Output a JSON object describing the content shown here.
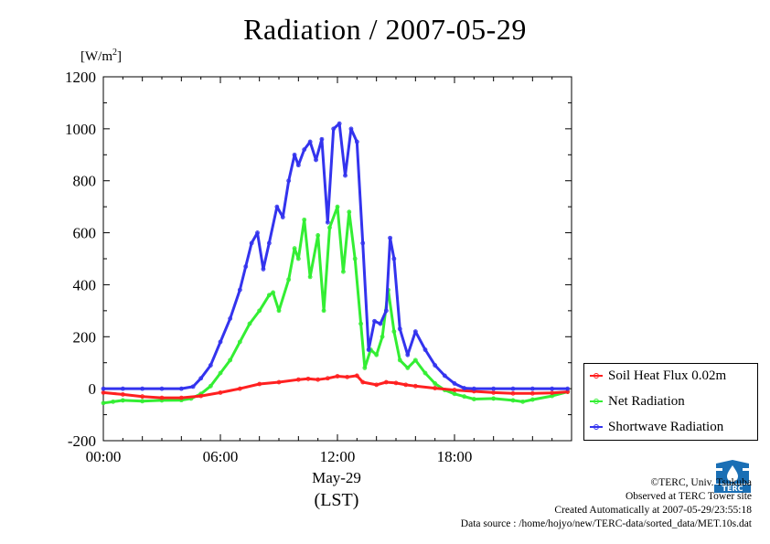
{
  "chart_data": {
    "type": "line",
    "title": "Radiation / 2007-05-29",
    "ylabel_unit": "[W/m2]",
    "xlabel": "May-29",
    "xlabel_sub": "(LST)",
    "ylim": [
      -200,
      1200
    ],
    "xlim_hours": [
      0,
      24
    ],
    "yticks": [
      "-200",
      "0",
      "200",
      "400",
      "600",
      "800",
      "1000",
      "1200"
    ],
    "xticks": [
      "00:00",
      "06:00",
      "12:00",
      "18:00"
    ],
    "legend_position": "bottom-right",
    "series": [
      {
        "name": "Soil Heat Flux 0.02m",
        "color": "#ff2020",
        "points": [
          [
            0,
            -15
          ],
          [
            1,
            -22
          ],
          [
            2,
            -30
          ],
          [
            3,
            -35
          ],
          [
            4,
            -35
          ],
          [
            5,
            -28
          ],
          [
            6,
            -15
          ],
          [
            7,
            0
          ],
          [
            8,
            18
          ],
          [
            9,
            25
          ],
          [
            10,
            35
          ],
          [
            10.5,
            38
          ],
          [
            11,
            35
          ],
          [
            11.5,
            40
          ],
          [
            12,
            48
          ],
          [
            12.5,
            45
          ],
          [
            13,
            50
          ],
          [
            13.3,
            25
          ],
          [
            14,
            15
          ],
          [
            14.5,
            25
          ],
          [
            15,
            22
          ],
          [
            15.5,
            15
          ],
          [
            16,
            10
          ],
          [
            17,
            2
          ],
          [
            18,
            -5
          ],
          [
            19,
            -10
          ],
          [
            20,
            -15
          ],
          [
            21,
            -18
          ],
          [
            22,
            -18
          ],
          [
            23,
            -16
          ],
          [
            23.8,
            -12
          ]
        ]
      },
      {
        "name": "Net Radiation",
        "color": "#33ee33",
        "points": [
          [
            0,
            -55
          ],
          [
            0.5,
            -50
          ],
          [
            1,
            -45
          ],
          [
            2,
            -48
          ],
          [
            3,
            -45
          ],
          [
            4,
            -44
          ],
          [
            4.5,
            -38
          ],
          [
            5,
            -20
          ],
          [
            5.5,
            10
          ],
          [
            6,
            60
          ],
          [
            6.5,
            110
          ],
          [
            7,
            180
          ],
          [
            7.5,
            250
          ],
          [
            8,
            300
          ],
          [
            8.5,
            360
          ],
          [
            8.7,
            370
          ],
          [
            9,
            300
          ],
          [
            9.5,
            420
          ],
          [
            9.8,
            540
          ],
          [
            10,
            500
          ],
          [
            10.3,
            650
          ],
          [
            10.6,
            430
          ],
          [
            11,
            590
          ],
          [
            11.3,
            300
          ],
          [
            11.6,
            620
          ],
          [
            12,
            700
          ],
          [
            12.3,
            450
          ],
          [
            12.6,
            680
          ],
          [
            12.9,
            500
          ],
          [
            13.2,
            250
          ],
          [
            13.4,
            80
          ],
          [
            13.7,
            150
          ],
          [
            14,
            130
          ],
          [
            14.3,
            200
          ],
          [
            14.6,
            380
          ],
          [
            14.9,
            220
          ],
          [
            15.2,
            110
          ],
          [
            15.6,
            80
          ],
          [
            16,
            110
          ],
          [
            16.5,
            60
          ],
          [
            17,
            20
          ],
          [
            17.5,
            -5
          ],
          [
            18,
            -20
          ],
          [
            18.5,
            -30
          ],
          [
            19,
            -40
          ],
          [
            20,
            -38
          ],
          [
            21,
            -45
          ],
          [
            21.5,
            -50
          ],
          [
            22,
            -42
          ],
          [
            23,
            -28
          ],
          [
            23.8,
            -12
          ]
        ]
      },
      {
        "name": "Shortwave Radiation",
        "color": "#3333ee",
        "points": [
          [
            0,
            0
          ],
          [
            1,
            0
          ],
          [
            2,
            0
          ],
          [
            3,
            0
          ],
          [
            4,
            0
          ],
          [
            4.6,
            8
          ],
          [
            5,
            40
          ],
          [
            5.5,
            90
          ],
          [
            6,
            180
          ],
          [
            6.5,
            270
          ],
          [
            7,
            380
          ],
          [
            7.3,
            470
          ],
          [
            7.6,
            560
          ],
          [
            7.9,
            600
          ],
          [
            8.2,
            460
          ],
          [
            8.5,
            560
          ],
          [
            8.9,
            700
          ],
          [
            9.2,
            660
          ],
          [
            9.5,
            800
          ],
          [
            9.8,
            900
          ],
          [
            10,
            860
          ],
          [
            10.3,
            920
          ],
          [
            10.6,
            950
          ],
          [
            10.9,
            880
          ],
          [
            11.2,
            960
          ],
          [
            11.5,
            640
          ],
          [
            11.8,
            1000
          ],
          [
            12.1,
            1020
          ],
          [
            12.4,
            820
          ],
          [
            12.7,
            1000
          ],
          [
            13,
            950
          ],
          [
            13.3,
            560
          ],
          [
            13.6,
            150
          ],
          [
            13.9,
            260
          ],
          [
            14.2,
            250
          ],
          [
            14.5,
            300
          ],
          [
            14.7,
            580
          ],
          [
            14.9,
            500
          ],
          [
            15.2,
            230
          ],
          [
            15.6,
            130
          ],
          [
            16,
            220
          ],
          [
            16.5,
            150
          ],
          [
            17,
            90
          ],
          [
            17.5,
            50
          ],
          [
            18,
            20
          ],
          [
            18.5,
            2
          ],
          [
            19,
            0
          ],
          [
            20,
            0
          ],
          [
            21,
            0
          ],
          [
            22,
            0
          ],
          [
            23,
            0
          ],
          [
            23.8,
            0
          ]
        ]
      }
    ]
  },
  "credits": {
    "copyright": "©TERC, Univ. Tsukuba",
    "observed": "Observed at TERC Tower site",
    "created": "Created Automatically at 2007-05-29/23:55:18",
    "source": "Data source : /home/hojyo/new/TERC-data/sorted_data/MET.10s.dat"
  },
  "logo": {
    "text": "TERC",
    "color": "#1a6fb5"
  }
}
